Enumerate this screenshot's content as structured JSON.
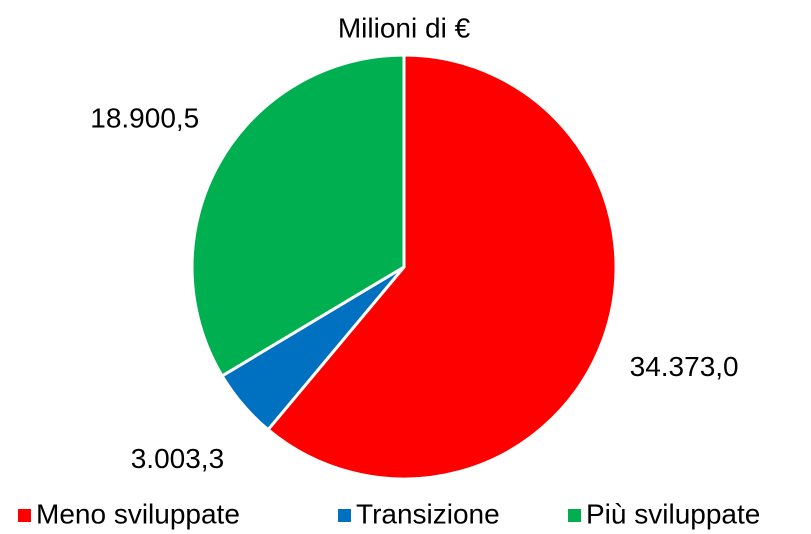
{
  "chart_data": {
    "type": "pie",
    "title": "Milioni di €",
    "categories": [
      "Meno sviluppate",
      "Transizione",
      "Più sviluppate"
    ],
    "values": [
      34373.0,
      3003.3,
      18900.5
    ],
    "value_labels": [
      "34.373,0",
      "3.003,3",
      "18.900,5"
    ],
    "colors": [
      "#ff0000",
      "#0070c0",
      "#00b050"
    ],
    "legend": "bottom"
  }
}
